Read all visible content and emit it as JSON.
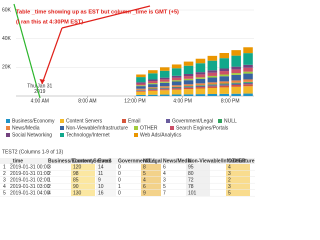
{
  "annotation": {
    "line1": "Table _time showing up as EST but column _time is GMT (+5)",
    "line2": "(I ran this at 4:30PM EST)"
  },
  "chart_data": {
    "type": "stacked_bar",
    "x": [
      12,
      13,
      14,
      15,
      16,
      17,
      18,
      19,
      20,
      21
    ],
    "xlim": [
      2,
      22
    ],
    "xticks": [
      {
        "value": 4,
        "label": "4:00 AM"
      },
      {
        "value": 8,
        "label": "8:00 AM"
      },
      {
        "value": 12,
        "label": "12:00 PM"
      },
      {
        "value": 16,
        "label": "4:00 PM"
      },
      {
        "value": 20,
        "label": "8:00 PM"
      }
    ],
    "tooltip": {
      "line1": "Thu Jan 31",
      "line2": "2019"
    },
    "ylim": [
      0,
      60000
    ],
    "yticks": [
      {
        "value": 20000,
        "label": "20K"
      },
      {
        "value": 40000,
        "label": "40K"
      },
      {
        "value": 60000,
        "label": "60K"
      }
    ],
    "grid": true,
    "series": [
      {
        "name": "Business/Economy",
        "color": "#1e93c6",
        "values": [
          750,
          900,
          1000,
          1100,
          1200,
          1300,
          1400,
          1500,
          1600,
          1700
        ]
      },
      {
        "name": "Content Servers",
        "color": "#f2b827",
        "values": [
          2250,
          2700,
          3000,
          3300,
          3600,
          3900,
          4200,
          4500,
          4800,
          5100
        ]
      },
      {
        "name": "Email",
        "color": "#d6563c",
        "values": [
          600,
          720,
          800,
          880,
          960,
          1040,
          1120,
          1200,
          1280,
          1360
        ]
      },
      {
        "name": "Government/Legal",
        "color": "#6a5c9e",
        "values": [
          450,
          540,
          600,
          660,
          720,
          780,
          840,
          900,
          960,
          1020
        ]
      },
      {
        "name": "NULL",
        "color": "#31a35f",
        "values": [
          300,
          360,
          400,
          440,
          480,
          520,
          560,
          600,
          640,
          680
        ]
      },
      {
        "name": "News/Media",
        "color": "#ed8440",
        "values": [
          750,
          900,
          1000,
          1100,
          1200,
          1300,
          1400,
          1500,
          1600,
          1700
        ]
      },
      {
        "name": "Non-Viewable/Infrastructure",
        "color": "#3863a0",
        "values": [
          1800,
          2160,
          2400,
          2640,
          2880,
          3120,
          3360,
          3600,
          3840,
          4080
        ]
      },
      {
        "name": "OTHER",
        "color": "#a2cc3e",
        "values": [
          600,
          720,
          800,
          880,
          960,
          1040,
          1120,
          1200,
          1280,
          1360
        ]
      },
      {
        "name": "Search Engines/Portals",
        "color": "#cc5068",
        "values": [
          1200,
          1440,
          1600,
          1760,
          1920,
          2080,
          2240,
          2400,
          2560,
          2720
        ]
      },
      {
        "name": "Social Networking",
        "color": "#73427f",
        "values": [
          900,
          1080,
          1200,
          1320,
          1440,
          1560,
          1680,
          1800,
          1920,
          2040
        ]
      },
      {
        "name": "Technology/Internet",
        "color": "#11a88b",
        "values": [
          3600,
          4320,
          4800,
          5280,
          5760,
          6240,
          6720,
          7200,
          7680,
          8160
        ]
      },
      {
        "name": "Web Ads/Analytics",
        "color": "#ea9600",
        "values": [
          1800,
          2160,
          2400,
          2640,
          2880,
          3120,
          3360,
          3600,
          3840,
          4080
        ]
      }
    ]
  },
  "table": {
    "title": "TEST2 (Columns 1-9 of 13)",
    "header": [
      "_time",
      "Business/Economy",
      "Content Servers",
      "Email",
      "Government/Legal",
      "NULL",
      "News/Media",
      "Non-Viewable/Infrastructure",
      "OTHER"
    ],
    "rows": [
      [
        "1",
        "2019-01-31 00:00",
        3,
        120,
        14,
        0,
        8,
        6,
        95,
        4
      ],
      [
        "2",
        "2019-01-31 01:00",
        2,
        98,
        11,
        0,
        5,
        4,
        80,
        3
      ],
      [
        "3",
        "2019-01-31 02:00",
        1,
        85,
        9,
        0,
        4,
        3,
        72,
        2
      ],
      [
        "4",
        "2019-01-31 03:00",
        2,
        90,
        10,
        1,
        6,
        5,
        78,
        3
      ],
      [
        "5",
        "2019-01-31 04:00",
        4,
        130,
        16,
        0,
        9,
        7,
        101,
        5
      ]
    ]
  }
}
